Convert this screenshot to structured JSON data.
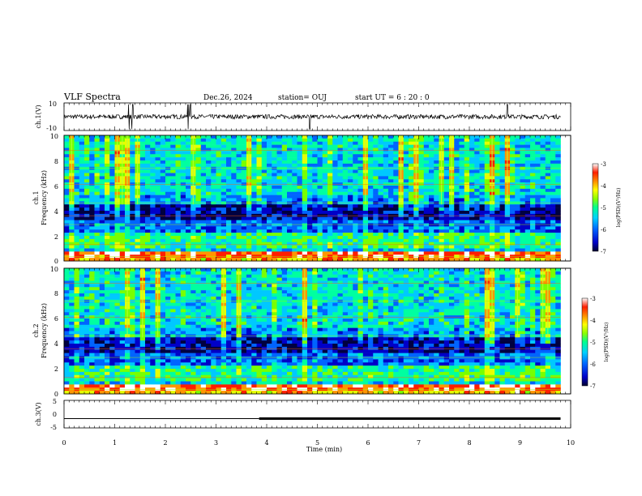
{
  "header": {
    "title": "VLF Spectra",
    "date": "Dec.26, 2024",
    "station": "station= OUJ",
    "start": "start  UT =   6 : 20 : 0"
  },
  "colors": {
    "colormap": [
      "#000040",
      "#0000c8",
      "#0064ff",
      "#00c8ff",
      "#00ffa0",
      "#78ff00",
      "#e6ff00",
      "#ff9600",
      "#ff1e00",
      "#ffffff"
    ],
    "trace": "#000000"
  },
  "chart_data": [
    {
      "type": "line",
      "panel": "ch1-waveform",
      "ylabel": "ch.1(V)",
      "ylim": [
        -10,
        10
      ],
      "yticks": [
        "10",
        "-10"
      ],
      "xlim": [
        0,
        10
      ],
      "baseline": 0,
      "spikes_min": [
        1.28,
        1.35,
        2.45,
        2.5,
        4.85,
        8.75
      ]
    },
    {
      "type": "heatmap",
      "panel": "ch1-spectrogram",
      "xlabel": "",
      "ylabel": "Frequency (kHz)",
      "channel_label": "ch.1",
      "ylim": [
        0,
        10
      ],
      "yticks": [
        "0",
        "2",
        "4",
        "6",
        "8",
        "10"
      ],
      "xlim": [
        0,
        9.8
      ],
      "colorbar": {
        "label": "log(PSD)(V²/Hz)",
        "range": [
          -7,
          -3
        ],
        "ticks": [
          "-3",
          "-4",
          "-5",
          "-6",
          "-7"
        ]
      }
    },
    {
      "type": "heatmap",
      "panel": "ch2-spectrogram",
      "ylabel": "Frequency (kHz)",
      "channel_label": "ch.2",
      "ylim": [
        0,
        10
      ],
      "yticks": [
        "0",
        "2",
        "4",
        "6",
        "8",
        "10"
      ],
      "xlim": [
        0,
        9.8
      ],
      "colorbar": {
        "label": "log(PSD)(V²/Hz)",
        "range": [
          -7,
          -3
        ],
        "ticks": [
          "-3",
          "-4",
          "-5",
          "-6",
          "-7"
        ]
      }
    },
    {
      "type": "line",
      "panel": "ch3-waveform",
      "ylabel": "ch.3(V)",
      "ylim": [
        -5,
        5
      ],
      "yticks": [
        "5",
        "0",
        "-5"
      ],
      "xlim": [
        0,
        10
      ],
      "xlabel": "Time (min)",
      "xticks": [
        "0",
        "1",
        "2",
        "3",
        "4",
        "5",
        "6",
        "7",
        "8",
        "9",
        "10"
      ],
      "x": [
        0,
        3.85,
        3.86,
        9.8
      ],
      "y": [
        -1.6,
        -1.6,
        -1.6,
        -1.6
      ],
      "thick_from": 3.85
    }
  ]
}
